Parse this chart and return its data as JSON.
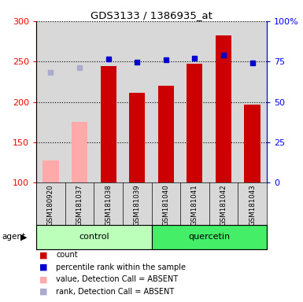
{
  "title": "GDS3133 / 1386935_at",
  "samples": [
    "GSM180920",
    "GSM181037",
    "GSM181038",
    "GSM181039",
    "GSM181040",
    "GSM181041",
    "GSM181042",
    "GSM181043"
  ],
  "bar_values": [
    null,
    null,
    244,
    211,
    220,
    247,
    282,
    197
  ],
  "bar_absent_values": [
    128,
    175,
    null,
    null,
    null,
    null,
    null,
    null
  ],
  "blue_dot_values": [
    null,
    null,
    253,
    249,
    252,
    254,
    258,
    248
  ],
  "blue_dot_absent_values": [
    237,
    242,
    null,
    null,
    null,
    null,
    null,
    null
  ],
  "bar_color": "#cc0000",
  "bar_absent_color": "#ffaaaa",
  "blue_dot_color": "#0000cc",
  "blue_dot_absent_color": "#aaaacc",
  "ylim_left": [
    100,
    300
  ],
  "yticks_left": [
    100,
    150,
    200,
    250,
    300
  ],
  "right_tick_positions": [
    100,
    150,
    200,
    250,
    300
  ],
  "ytick_labels_right": [
    "0",
    "25",
    "50",
    "75",
    "100%"
  ],
  "control_color": "#bbffbb",
  "quercetin_color": "#44ee66",
  "plot_bg_color": "#d8d8d8",
  "bar_width": 0.55,
  "legend_items": [
    [
      "#cc0000",
      "count"
    ],
    [
      "#0000cc",
      "percentile rank within the sample"
    ],
    [
      "#ffaaaa",
      "value, Detection Call = ABSENT"
    ],
    [
      "#aaaacc",
      "rank, Detection Call = ABSENT"
    ]
  ]
}
